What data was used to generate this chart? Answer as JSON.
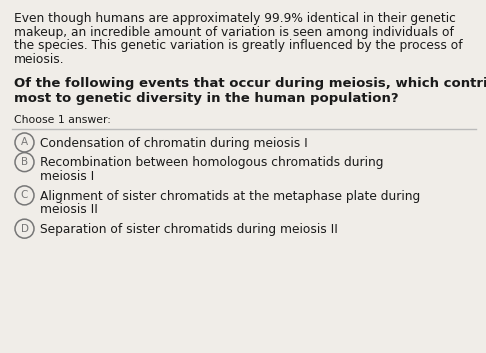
{
  "background_color": "#f0ede8",
  "intro_text_lines": [
    "Even though humans are approximately 99.9% identical in their genetic",
    "makeup, an incredible amount of variation is seen among individuals of",
    "the species. This genetic variation is greatly influenced by the process of",
    "meiosis."
  ],
  "question_text_lines": [
    "Of the following events that occur during meiosis, which contributes",
    "most to genetic diversity in the human population?"
  ],
  "instruction_text": "Choose 1 answer:",
  "options": [
    {
      "label": "A",
      "text_lines": [
        "Condensation of chromatin during meiosis I"
      ]
    },
    {
      "label": "B",
      "text_lines": [
        "Recombination between homologous chromatids during",
        "meiosis I"
      ]
    },
    {
      "label": "C",
      "text_lines": [
        "Alignment of sister chromatids at the metaphase plate during",
        "meiosis II"
      ]
    },
    {
      "label": "D",
      "text_lines": [
        "Separation of sister chromatids during meiosis II"
      ]
    }
  ],
  "intro_fontsize": 8.8,
  "question_fontsize": 9.5,
  "instruction_fontsize": 7.8,
  "option_fontsize": 8.8,
  "circle_color": "#777777",
  "text_color": "#1a1a1a",
  "line_color": "#bbbbbb",
  "fig_width": 4.86,
  "fig_height": 3.53,
  "dpi": 100
}
